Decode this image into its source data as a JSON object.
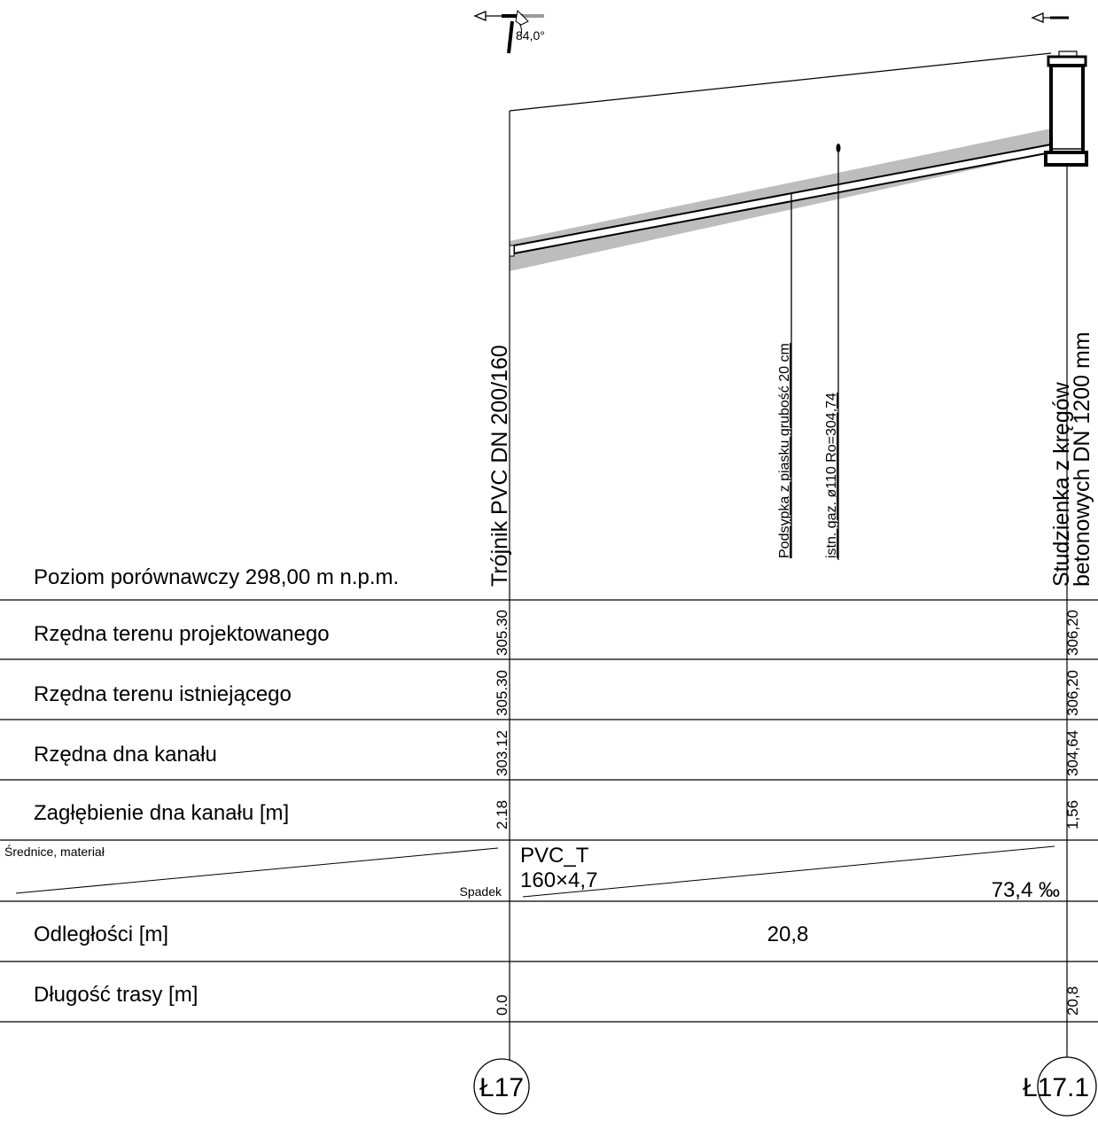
{
  "reference_level": "Poziom porównawczy 298,00 m n.p.m.",
  "rows": {
    "terrain_projected": "Rzędna terenu projektowanego",
    "terrain_existing": "Rzędna terenu istniejącego",
    "channel_bottom": "Rzędna dna kanału",
    "depth": "Zagłębienie dna kanału [m]",
    "diameters": "Średnice, materiał",
    "slope": "Spadek",
    "distances": "Odległości [m]",
    "route_length": "Długość trasy [m]"
  },
  "start": {
    "node": "Ł17",
    "description": "Trójnik PVC DN 200/160",
    "terrain_projected": "305.30",
    "terrain_existing": "305.30",
    "channel_bottom": "303.12",
    "depth": "2.18",
    "route_length": "0.0",
    "angle": "84,0°"
  },
  "end": {
    "node": "Ł17.1",
    "description_line1": "Studzienka z kręgów",
    "description_line2": "betonowych DN 1200 mm",
    "terrain_projected": "306,20",
    "terrain_existing": "306,20",
    "channel_bottom": "304,64",
    "depth": "1,56",
    "route_length": "20,8"
  },
  "segment": {
    "material": "PVC_T",
    "diameter": "160×4,7",
    "slope": "73,4 ‰",
    "distance": "20,8"
  },
  "annotations": {
    "bedding": "Podsypka z piasku grubość 20 cm",
    "gas": "istn. gaz. ø110  Ro=304,74"
  },
  "colors": {
    "line": "#000000",
    "bedding": "#bdbdbd",
    "background": "#ffffff"
  }
}
